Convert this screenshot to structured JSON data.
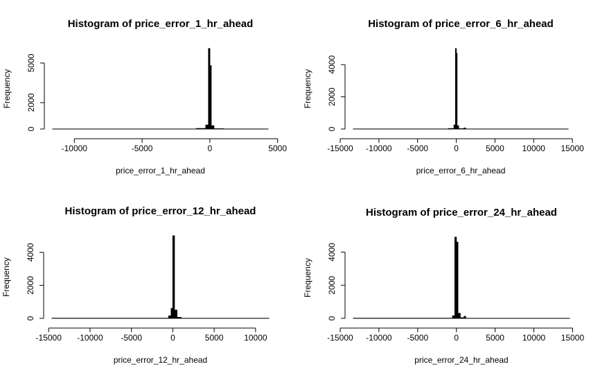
{
  "chart_data": [
    {
      "type": "histogram",
      "title": "Histogram of price_error_1_hr_ahead",
      "x_label": "price_error_1_hr_ahead",
      "y_label": "Frequency",
      "bins": [
        -11600,
        -1000,
        -300,
        -100,
        0,
        100,
        300,
        1000,
        4300
      ],
      "values": [
        2,
        40,
        300,
        6100,
        4800,
        250,
        20,
        3
      ],
      "xlim": [
        -11600,
        4300
      ],
      "ylim": [
        0,
        6100
      ],
      "xticks": [
        -10000,
        -5000,
        0,
        5000
      ],
      "yticks": [
        0,
        2000,
        5000
      ],
      "color": "#000000"
    },
    {
      "type": "histogram",
      "title": "Histogram of price_error_6_hr_ahead",
      "x_label": "price_error_6_hr_ahead",
      "y_label": "Frequency",
      "bins": [
        -13300,
        -1000,
        -300,
        -100,
        0,
        100,
        300,
        1000,
        1200,
        14450
      ],
      "values": [
        3,
        30,
        250,
        5000,
        4700,
        200,
        20,
        60,
        2
      ],
      "xlim": [
        -13300,
        14450
      ],
      "ylim": [
        0,
        5000
      ],
      "xticks": [
        -15000,
        -10000,
        -5000,
        0,
        5000,
        10000,
        15000
      ],
      "yticks": [
        0,
        2000,
        4000
      ],
      "color": "#000000"
    },
    {
      "type": "histogram",
      "title": "Histogram of price_error_12_hr_ahead",
      "x_label": "price_error_12_hr_ahead",
      "y_label": "Frequency",
      "bins": [
        -14600,
        -500,
        -200,
        0,
        200,
        500,
        1000,
        11600
      ],
      "values": [
        8,
        150,
        600,
        5000,
        500,
        60,
        4
      ],
      "xlim": [
        -14600,
        11600
      ],
      "ylim": [
        0,
        5000
      ],
      "xticks": [
        -15000,
        -10000,
        -5000,
        0,
        5000,
        10000
      ],
      "yticks": [
        0,
        2000,
        4000
      ],
      "color": "#000000"
    },
    {
      "type": "histogram",
      "title": "Histogram of price_error_24_hr_ahead",
      "x_label": "price_error_24_hr_ahead",
      "y_label": "Frequency",
      "bins": [
        -13300,
        -500,
        -200,
        0,
        200,
        500,
        1000,
        1200,
        14600
      ],
      "values": [
        8,
        150,
        4900,
        4600,
        300,
        40,
        120,
        3
      ],
      "xlim": [
        -13300,
        14600
      ],
      "ylim": [
        0,
        4900
      ],
      "xticks": [
        -15000,
        -10000,
        -5000,
        0,
        5000,
        10000,
        15000
      ],
      "yticks": [
        0,
        2000,
        4000
      ],
      "color": "#000000"
    }
  ]
}
